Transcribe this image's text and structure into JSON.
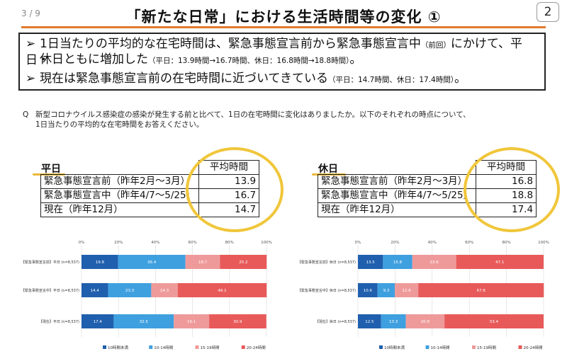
{
  "header": {
    "page_indicator": "3 / 9",
    "title": "「新たな日常」における生活時間等の変化 ①",
    "slide_number": "2"
  },
  "summary": {
    "bullet1_line1": "1日当たりの平均的な在宅時間は、緊急事態宣言前から緊急事態宣言中",
    "bullet1_line1_small": "（前回）",
    "bullet1_line1_end": "にかけて、平日・",
    "bullet1_line2": "休日ともに増加した",
    "bullet1_line2_small": "（平日：13.9時間→16.7時間、休日：16.8時間→18.8時間）",
    "bullet1_line2_end": "。",
    "bullet2": "現在は緊急事態宣言前の在宅時間に近づいてきている",
    "bullet2_small": "（平日：14.7時間、休日：17.4時間）",
    "bullet2_end": "。",
    "arrow_glyph": "➢"
  },
  "question": {
    "mark": "Q",
    "line1": "新型コロナウイルス感染症の感染が発生する前と比べて、1日の在宅時間に変化はありましたか。以下のそれぞれの時点について、",
    "line2": "1日当たりの平均的な在宅時間をお答えください。"
  },
  "weekday_table": {
    "label": "平日",
    "header": "平均時間",
    "rows": [
      {
        "label": "緊急事態宣言前（昨年2月～3月）",
        "value": "13.9"
      },
      {
        "label": "緊急事態宣言中（昨年4/7～5/25）",
        "value": "16.7"
      },
      {
        "label": "現在（昨年12月）",
        "value": "14.7"
      }
    ]
  },
  "holiday_table": {
    "label": "休日",
    "header": "平均時間",
    "rows": [
      {
        "label": "緊急事態宣言前（昨年2月～3月）",
        "value": "16.8"
      },
      {
        "label": "緊急事態宣言中（昨年4/7～5/25）",
        "value": "18.8"
      },
      {
        "label": "現在（昨年12月）",
        "value": "17.4"
      }
    ]
  },
  "chart_data": [
    {
      "type": "bar",
      "stacked": true,
      "orientation": "horizontal",
      "xlim": [
        0,
        100
      ],
      "ticks": [
        "0%",
        "20%",
        "40%",
        "60%",
        "80%",
        "100%"
      ],
      "categories": [
        "【緊急事態宣言前】平日 (n=8,537)",
        "【緊急事態宣言中】平日 (n=8,537)",
        "【現在】平日 (n=8,537)"
      ],
      "series": [
        {
          "name": "10時間未満",
          "color": "#1f5fae",
          "values": [
            19.8,
            14.4,
            17.4
          ]
        },
        {
          "name": "10-14時間",
          "color": "#3fa0e0",
          "values": [
            36.4,
            23.3,
            32.5
          ]
        },
        {
          "name": "15-19時間",
          "color": "#ef9a9a",
          "values": [
            18.7,
            14.3,
            19.1
          ]
        },
        {
          "name": "20-24時間",
          "color": "#e85a5a",
          "values": [
            25.2,
            48.1,
            30.9
          ]
        }
      ],
      "legend": "bottom"
    },
    {
      "type": "bar",
      "stacked": true,
      "orientation": "horizontal",
      "xlim": [
        0,
        100
      ],
      "ticks": [
        "0%",
        "20%",
        "40%",
        "60%",
        "80%",
        "100%"
      ],
      "categories": [
        "【緊急事態宣言前】休日 (n=8,537)",
        "【緊急事態宣言中】休日 (n=8,537)",
        "【現在】休日 (n=8,537)"
      ],
      "series": [
        {
          "name": "10時間未満",
          "color": "#1f5fae",
          "values": [
            13.5,
            10.6,
            12.5
          ]
        },
        {
          "name": "10-14時間",
          "color": "#3fa0e0",
          "values": [
            15.8,
            9.3,
            13.3
          ]
        },
        {
          "name": "15-19時間",
          "color": "#ef9a9a",
          "values": [
            23.6,
            12.6,
            20.8
          ]
        },
        {
          "name": "20-24時間",
          "color": "#e85a5a",
          "values": [
            47.1,
            67.6,
            53.4
          ]
        }
      ],
      "legend": "bottom"
    }
  ]
}
